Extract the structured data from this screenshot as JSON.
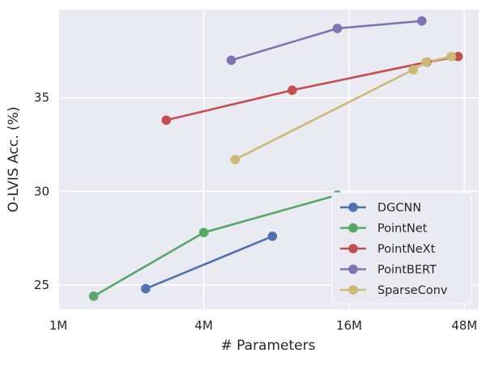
{
  "chart_data": {
    "type": "line",
    "xlabel": "# Parameters",
    "ylabel": "O-LVIS Acc. (%)",
    "xscale": "log2",
    "xlim_millions": [
      1,
      55
    ],
    "ylim": [
      23.7,
      39.7
    ],
    "x_ticks": [
      {
        "value": 1,
        "label": "1M"
      },
      {
        "value": 4,
        "label": "4M"
      },
      {
        "value": 16,
        "label": "16M"
      },
      {
        "value": 48,
        "label": "48M"
      }
    ],
    "y_ticks": [
      {
        "value": 25,
        "label": "25"
      },
      {
        "value": 30,
        "label": "30"
      },
      {
        "value": 35,
        "label": "35"
      }
    ],
    "grid": true,
    "legend_position": "lower-right",
    "series": [
      {
        "name": "DGCNN",
        "color": "#4C72B0",
        "x": [
          2.3,
          7.7
        ],
        "y": [
          24.8,
          27.6
        ]
      },
      {
        "name": "PointNet",
        "color": "#55A868",
        "x": [
          1.4,
          4.0,
          14.3
        ],
        "y": [
          24.4,
          27.8,
          29.8
        ]
      },
      {
        "name": "PointNeXt",
        "color": "#C44E52",
        "x": [
          2.8,
          9.3,
          33.5,
          45.2
        ],
        "y": [
          33.8,
          35.4,
          36.9,
          37.2
        ]
      },
      {
        "name": "PointBERT",
        "color": "#8172B2",
        "x": [
          5.2,
          14.3,
          32.0
        ],
        "y": [
          37.0,
          38.7,
          39.1
        ]
      },
      {
        "name": "SparseConv",
        "color": "#CCB974",
        "x": [
          5.4,
          29.5,
          33.3,
          42.4
        ],
        "y": [
          31.7,
          36.5,
          36.9,
          37.2
        ]
      }
    ]
  }
}
